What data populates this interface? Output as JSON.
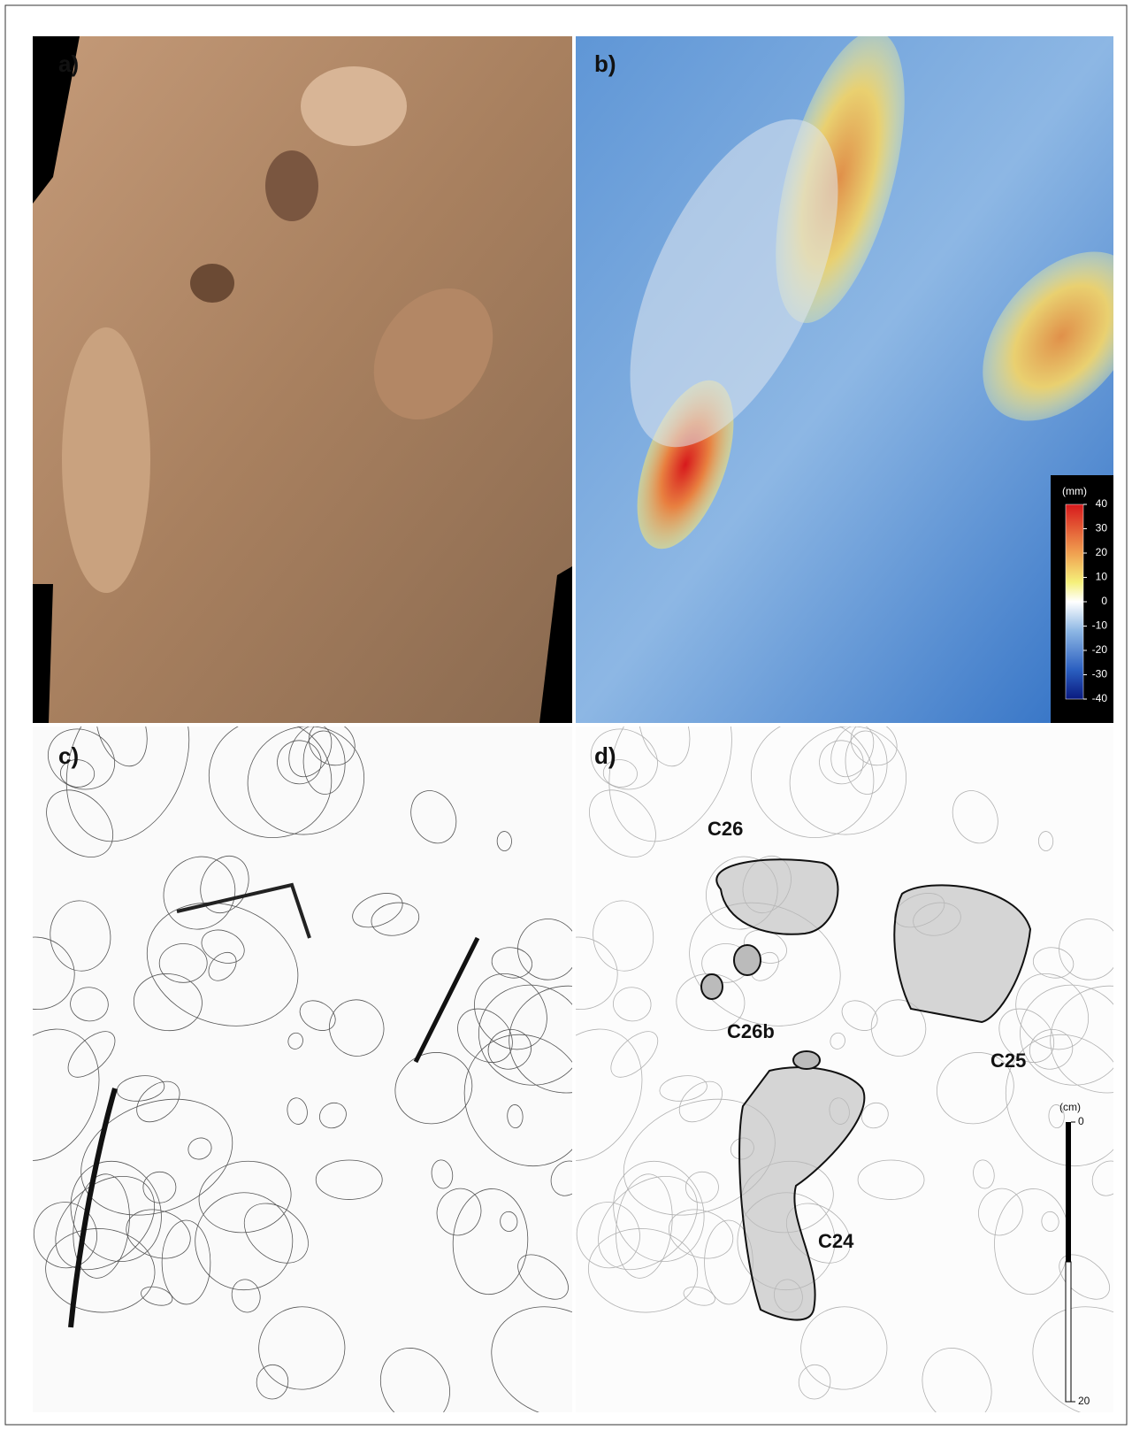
{
  "panels": [
    {
      "label": "a)"
    },
    {
      "label": "b)"
    },
    {
      "label": "c)"
    },
    {
      "label": "d)"
    }
  ],
  "colorbar": {
    "title": "(mm)",
    "lim": [
      -40,
      40
    ],
    "ticks": [
      40,
      30,
      20,
      10,
      0,
      -10,
      -20,
      -30,
      -40
    ]
  },
  "scalebar": {
    "title": "(cm)",
    "lim": [
      0,
      20
    ],
    "ticks": [
      0,
      20
    ]
  },
  "footprints": [
    {
      "label": "C26"
    },
    {
      "label": "C26b"
    },
    {
      "label": "C25"
    },
    {
      "label": "C24"
    }
  ]
}
